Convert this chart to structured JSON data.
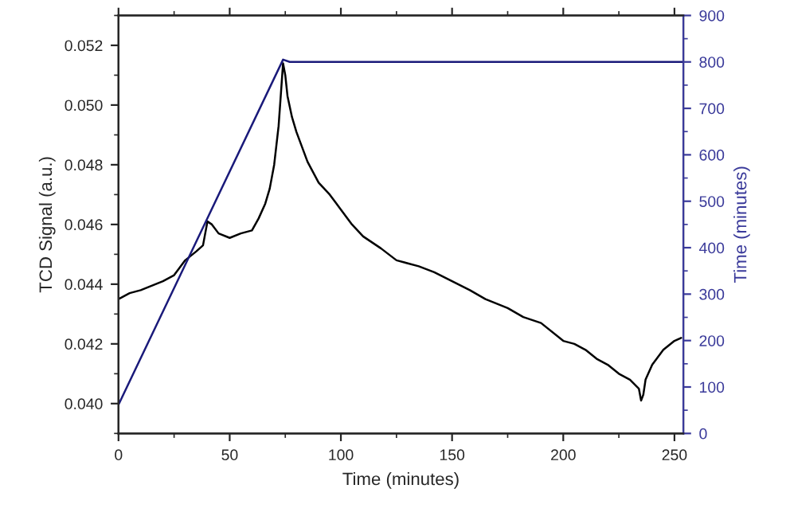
{
  "chart_data": {
    "type": "line",
    "xlabel": "Time (minutes)",
    "ylabel": "TCD Signal (a.u.)",
    "y2label": "Time (minutes)",
    "xlim": [
      0,
      254
    ],
    "xticks": [
      0,
      50,
      100,
      150,
      200,
      250
    ],
    "ylim": [
      0.039,
      0.053
    ],
    "yticks": [
      {
        "value": 0.04,
        "label": "0.040"
      },
      0.042,
      0.044,
      0.046,
      0.048,
      {
        "value": 0.05,
        "label": "0.050"
      },
      0.052
    ],
    "y2lim": [
      0,
      900
    ],
    "y2ticks": [
      0,
      100,
      200,
      300,
      400,
      500,
      600,
      700,
      800,
      900
    ],
    "grid": false,
    "legend": false,
    "marker": "none",
    "line_style": "solid",
    "series": [
      {
        "color": "#000000",
        "x": [
          0,
          5,
          10,
          20,
          25,
          30,
          35,
          38,
          40,
          42,
          45,
          50,
          55,
          60,
          63,
          66,
          68,
          70,
          72,
          74,
          75,
          76,
          78,
          80,
          85,
          90,
          95,
          100,
          105,
          110,
          118,
          125,
          135,
          142,
          150,
          158,
          165,
          175,
          182,
          190,
          200,
          205,
          210,
          215,
          220,
          225,
          230,
          234,
          235,
          236,
          237,
          240,
          245,
          250,
          253
        ],
        "values": [
          0.0435,
          0.0437,
          0.0438,
          0.0441,
          0.0443,
          0.0448,
          0.0451,
          0.0453,
          0.0461,
          0.046,
          0.0457,
          0.04555,
          0.0457,
          0.0458,
          0.0462,
          0.0467,
          0.0472,
          0.048,
          0.0493,
          0.0514,
          0.051,
          0.0503,
          0.0496,
          0.0491,
          0.0481,
          0.0474,
          0.047,
          0.0465,
          0.046,
          0.0456,
          0.0452,
          0.0448,
          0.0446,
          0.0444,
          0.0441,
          0.0438,
          0.0435,
          0.0432,
          0.0429,
          0.0427,
          0.0421,
          0.042,
          0.0418,
          0.0415,
          0.0413,
          0.041,
          0.0408,
          0.0405,
          0.0401,
          0.0403,
          0.0408,
          0.0413,
          0.0418,
          0.0421,
          0.0422
        ]
      },
      {
        "color": "#1a1a7a",
        "axis": "y2",
        "x": [
          0,
          74,
          77,
          254
        ],
        "values": [
          62,
          805,
          800,
          800
        ]
      }
    ]
  }
}
